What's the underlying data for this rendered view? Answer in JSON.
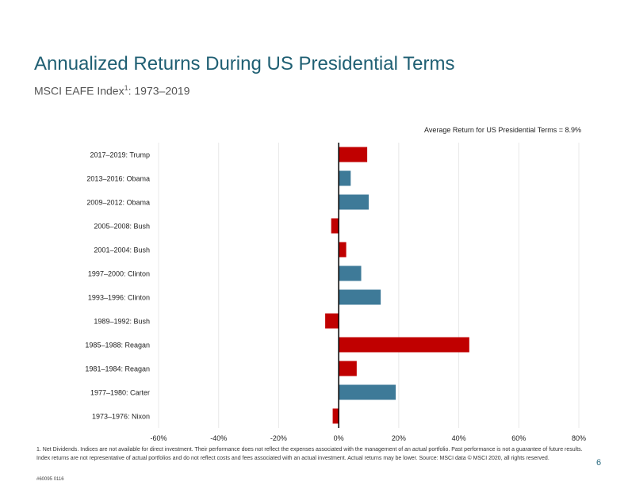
{
  "slide": {
    "title": "Annualized Returns During US Presidential Terms",
    "subtitle_main": "MSCI EAFE Index",
    "subtitle_sup": "1",
    "subtitle_tail": ": 1973–2019",
    "footnote": "Indices are not available for direct investment. Their performance does not reflect the expenses associated with the management of an actual portfolio. Past performance is not a guarantee of future results. Index returns are not representative of actual portfolios and do not reflect costs and fees associated with an actual investment. Actual returns may be lower. Source: MSCI data © MSCI 2020, all rights reserved.",
    "footnote_marker": "1. Net Dividends.",
    "page_number": "6",
    "doc_code": "#60095 0116"
  },
  "chart_data": {
    "type": "bar",
    "orientation": "horizontal",
    "title": "",
    "annotation": "Average Return for US Presidential Terms = 8.9%",
    "xlim": [
      -60,
      80
    ],
    "xticks": [
      -60,
      -40,
      -20,
      0,
      20,
      40,
      60,
      80
    ],
    "xtick_labels": [
      "-60%",
      "-40%",
      "-20%",
      "0%",
      "20%",
      "40%",
      "60%",
      "80%"
    ],
    "grid": true,
    "categories": [
      "2017–2019: Trump",
      "2013–2016: Obama",
      "2009–2012: Obama",
      "2005–2008: Bush",
      "2001–2004: Bush",
      "1997–2000: Clinton",
      "1993–1996: Clinton",
      "1989–1992: Bush",
      "1985–1988: Reagan",
      "1981–1984: Reagan",
      "1977–1980: Carter",
      "1973–1976: Nixon"
    ],
    "values": [
      9.5,
      4.0,
      10.0,
      -2.5,
      2.5,
      7.5,
      14.0,
      -4.5,
      43.5,
      6.0,
      19.0,
      -2.0
    ],
    "party": [
      "Republican",
      "Democrat",
      "Democrat",
      "Republican",
      "Republican",
      "Democrat",
      "Democrat",
      "Republican",
      "Republican",
      "Republican",
      "Democrat",
      "Republican"
    ],
    "colors": {
      "Republican": "#c00000",
      "Democrat": "#3e7a98",
      "grid": "#e8e8e8",
      "axis": "#000000",
      "label": "#222222"
    }
  }
}
